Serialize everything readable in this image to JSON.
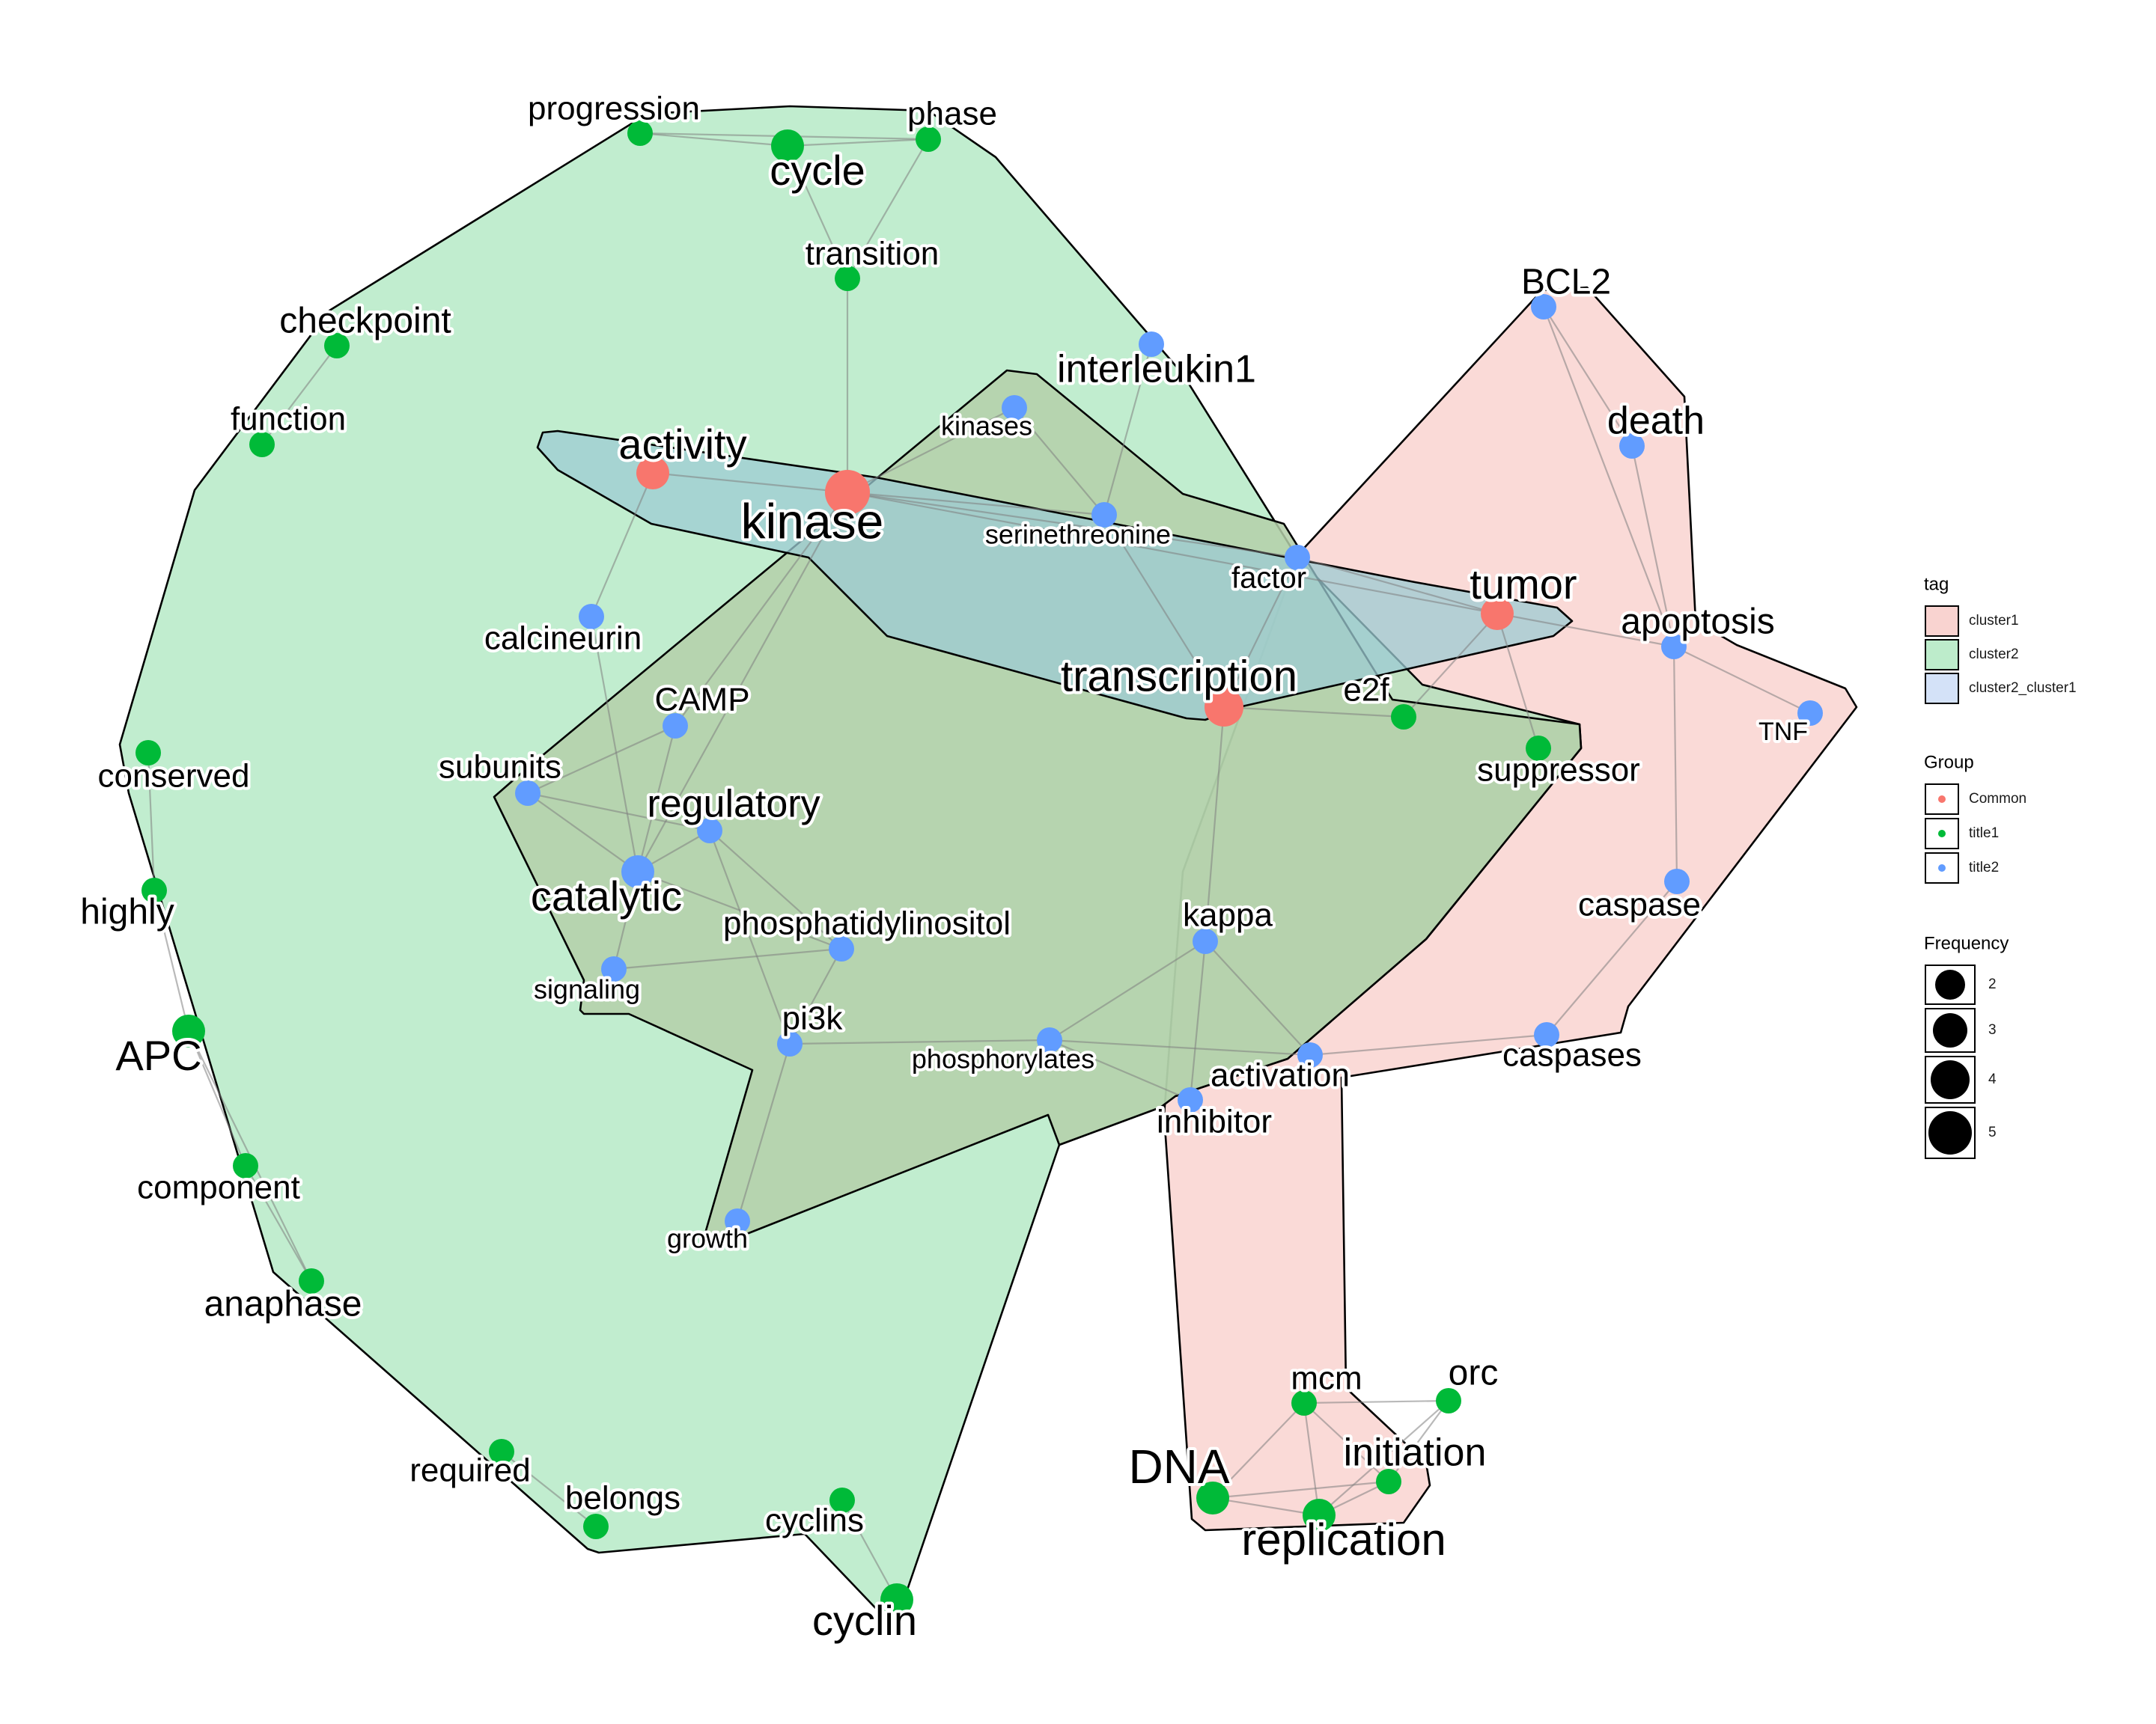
{
  "graph": {
    "nodes": [
      {
        "id": "progression",
        "group": "title1",
        "freq": 2
      },
      {
        "id": "cycle",
        "group": "title1",
        "freq": 3
      },
      {
        "id": "phase",
        "group": "title1",
        "freq": 2
      },
      {
        "id": "transition",
        "group": "title1",
        "freq": 2
      },
      {
        "id": "checkpoint",
        "group": "title1",
        "freq": 2
      },
      {
        "id": "function",
        "group": "title1",
        "freq": 2
      },
      {
        "id": "conserved",
        "group": "title1",
        "freq": 2
      },
      {
        "id": "highly",
        "group": "title1",
        "freq": 2
      },
      {
        "id": "APC",
        "group": "title1",
        "freq": 3
      },
      {
        "id": "component",
        "group": "title1",
        "freq": 2
      },
      {
        "id": "anaphase",
        "group": "title1",
        "freq": 2
      },
      {
        "id": "required",
        "group": "title1",
        "freq": 2
      },
      {
        "id": "belongs",
        "group": "title1",
        "freq": 2
      },
      {
        "id": "cyclins",
        "group": "title1",
        "freq": 2
      },
      {
        "id": "cyclin",
        "group": "title1",
        "freq": 3
      },
      {
        "id": "interleukin1",
        "group": "title2",
        "freq": 2
      },
      {
        "id": "kinases",
        "group": "title2",
        "freq": 2
      },
      {
        "id": "activity",
        "group": "Common",
        "freq": 3
      },
      {
        "id": "kinase",
        "group": "Common",
        "freq": 5
      },
      {
        "id": "serinethreonine",
        "group": "title2",
        "freq": 2
      },
      {
        "id": "factor",
        "group": "title2",
        "freq": 2
      },
      {
        "id": "tumor",
        "group": "Common",
        "freq": 3
      },
      {
        "id": "calcineurin",
        "group": "title2",
        "freq": 2
      },
      {
        "id": "transcription",
        "group": "Common",
        "freq": 4
      },
      {
        "id": "e2f",
        "group": "title1",
        "freq": 2
      },
      {
        "id": "suppressor",
        "group": "title1",
        "freq": 2
      },
      {
        "id": "CAMP",
        "group": "title2",
        "freq": 2
      },
      {
        "id": "subunits",
        "group": "title2",
        "freq": 2
      },
      {
        "id": "regulatory",
        "group": "title2",
        "freq": 2
      },
      {
        "id": "catalytic",
        "group": "title2",
        "freq": 3
      },
      {
        "id": "phosphatidylinositol",
        "group": "title2",
        "freq": 2
      },
      {
        "id": "signaling",
        "group": "title2",
        "freq": 2
      },
      {
        "id": "pi3k",
        "group": "title2",
        "freq": 2
      },
      {
        "id": "phosphorylates",
        "group": "title2",
        "freq": 2
      },
      {
        "id": "kappa",
        "group": "title2",
        "freq": 2
      },
      {
        "id": "activation",
        "group": "title2",
        "freq": 2
      },
      {
        "id": "inhibitor",
        "group": "title2",
        "freq": 2
      },
      {
        "id": "growth",
        "group": "title2",
        "freq": 2
      },
      {
        "id": "BCL2",
        "group": "title2",
        "freq": 2
      },
      {
        "id": "death",
        "group": "title2",
        "freq": 2
      },
      {
        "id": "apoptosis",
        "group": "title2",
        "freq": 2
      },
      {
        "id": "TNF",
        "group": "title2",
        "freq": 2
      },
      {
        "id": "caspase",
        "group": "title2",
        "freq": 2
      },
      {
        "id": "caspases",
        "group": "title2",
        "freq": 2
      },
      {
        "id": "mcm",
        "group": "title1",
        "freq": 2
      },
      {
        "id": "orc",
        "group": "title1",
        "freq": 2
      },
      {
        "id": "initiation",
        "group": "title1",
        "freq": 2
      },
      {
        "id": "DNA",
        "group": "title1",
        "freq": 3
      },
      {
        "id": "replication",
        "group": "title1",
        "freq": 3
      }
    ],
    "edges": [
      [
        "progression",
        "cycle"
      ],
      [
        "progression",
        "phase"
      ],
      [
        "cycle",
        "phase"
      ],
      [
        "cycle",
        "transition"
      ],
      [
        "phase",
        "transition"
      ],
      [
        "transition",
        "kinase"
      ],
      [
        "checkpoint",
        "function"
      ],
      [
        "conserved",
        "highly"
      ],
      [
        "highly",
        "APC"
      ],
      [
        "APC",
        "component"
      ],
      [
        "APC",
        "anaphase"
      ],
      [
        "component",
        "anaphase"
      ],
      [
        "required",
        "belongs"
      ],
      [
        "cyclins",
        "cyclin"
      ],
      [
        "interleukin1",
        "serinethreonine"
      ],
      [
        "kinases",
        "serinethreonine"
      ],
      [
        "kinases",
        "kinase"
      ],
      [
        "activity",
        "kinase"
      ],
      [
        "activity",
        "calcineurin"
      ],
      [
        "kinase",
        "serinethreonine"
      ],
      [
        "kinase",
        "factor"
      ],
      [
        "kinase",
        "tumor"
      ],
      [
        "kinase",
        "CAMP"
      ],
      [
        "kinase",
        "catalytic"
      ],
      [
        "serinethreonine",
        "transcription"
      ],
      [
        "factor",
        "transcription"
      ],
      [
        "factor",
        "tumor"
      ],
      [
        "tumor",
        "apoptosis"
      ],
      [
        "tumor",
        "suppressor"
      ],
      [
        "tumor",
        "e2f"
      ],
      [
        "transcription",
        "e2f"
      ],
      [
        "transcription",
        "kappa"
      ],
      [
        "calcineurin",
        "catalytic"
      ],
      [
        "CAMP",
        "subunits"
      ],
      [
        "CAMP",
        "catalytic"
      ],
      [
        "subunits",
        "regulatory"
      ],
      [
        "subunits",
        "catalytic"
      ],
      [
        "regulatory",
        "catalytic"
      ],
      [
        "regulatory",
        "phosphatidylinositol"
      ],
      [
        "regulatory",
        "pi3k"
      ],
      [
        "catalytic",
        "signaling"
      ],
      [
        "catalytic",
        "phosphatidylinositol"
      ],
      [
        "signaling",
        "phosphatidylinositol"
      ],
      [
        "phosphatidylinositol",
        "pi3k"
      ],
      [
        "pi3k",
        "phosphorylates"
      ],
      [
        "pi3k",
        "growth"
      ],
      [
        "kappa",
        "phosphorylates"
      ],
      [
        "kappa",
        "activation"
      ],
      [
        "kappa",
        "inhibitor"
      ],
      [
        "phosphorylates",
        "activation"
      ],
      [
        "phosphorylates",
        "inhibitor"
      ],
      [
        "activation",
        "caspases"
      ],
      [
        "BCL2",
        "death"
      ],
      [
        "BCL2",
        "apoptosis"
      ],
      [
        "death",
        "apoptosis"
      ],
      [
        "apoptosis",
        "TNF"
      ],
      [
        "apoptosis",
        "caspase"
      ],
      [
        "caspase",
        "caspases"
      ],
      [
        "mcm",
        "orc"
      ],
      [
        "mcm",
        "initiation"
      ],
      [
        "mcm",
        "DNA"
      ],
      [
        "mcm",
        "replication"
      ],
      [
        "orc",
        "initiation"
      ],
      [
        "orc",
        "replication"
      ],
      [
        "initiation",
        "DNA"
      ],
      [
        "initiation",
        "replication"
      ],
      [
        "DNA",
        "replication"
      ]
    ]
  },
  "legend": {
    "tag": {
      "title": "tag",
      "items": [
        {
          "label": "cluster1",
          "fill": "#f8cbc8"
        },
        {
          "label": "cluster2",
          "fill": "#a8e6bd"
        },
        {
          "label": "cluster2_cluster1",
          "fill": "#c6d8f5"
        }
      ]
    },
    "group": {
      "title": "Group",
      "items": [
        {
          "label": "Common",
          "color": "#f8766d"
        },
        {
          "label": "title1",
          "color": "#00ba38"
        },
        {
          "label": "title2",
          "color": "#619cff"
        }
      ]
    },
    "frequency": {
      "title": "Frequency",
      "items": [
        {
          "label": "2",
          "value": 2
        },
        {
          "label": "3",
          "value": 3
        },
        {
          "label": "4",
          "value": 4
        },
        {
          "label": "5",
          "value": 5
        }
      ]
    }
  },
  "colors": {
    "Common": "#f8766d",
    "title1": "#00ba38",
    "title2": "#619cff",
    "cluster1_fill": "#f9d3d0",
    "cluster2_fill": "#9fe3b5",
    "overlap_fill": "#a8c8e8",
    "edge": "#7f7f7f"
  }
}
